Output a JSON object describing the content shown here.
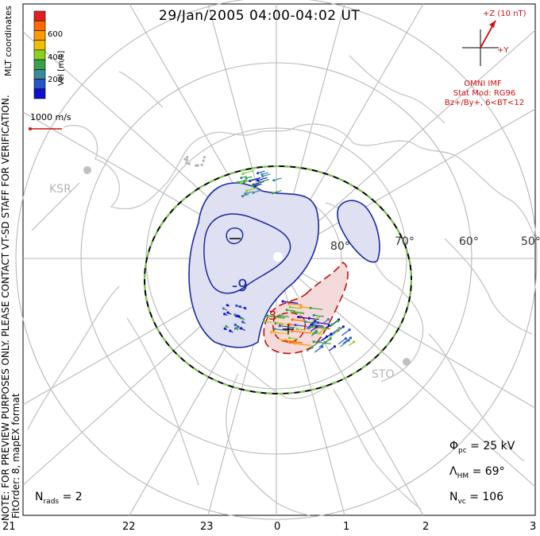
{
  "title": "29/Jan/2005 04:00-04:02 UT",
  "side_note_1": "NOTE: FOR PREVIEW PURPOSES ONLY. PLEASE CONTACT VT-SD STAFF FOR VERIFICATION.",
  "side_note_2": "FitOrder: 8, mapEX format",
  "coord_label": "MLT coordinates",
  "colorbar": {
    "label": "Vel [m/s]",
    "ticks": [
      "600",
      "400",
      "200"
    ],
    "colors": [
      "#e02020",
      "#ff6a00",
      "#ff9a00",
      "#f0c000",
      "#8ad020",
      "#3aa04a",
      "#3a8a9a",
      "#2a55c8",
      "#1010d0"
    ]
  },
  "scale_vector": "1000 m/s",
  "imf": {
    "z_label": "+Z (10 nT)",
    "y_label": "+Y",
    "source": "OMNI IMF",
    "model": "Stat Mod: RG96",
    "condition": "Bz+/By+, 6<BT<12"
  },
  "stats": {
    "phi_pc": "= 25 kV",
    "lambda_hm": "= 69°",
    "n_vc": "= 106",
    "n_rads": "= 2"
  },
  "radars": [
    "KSR",
    "STO"
  ],
  "lat_labels": [
    "80°",
    "70°",
    "60°",
    "50°"
  ],
  "mlt_ticks": [
    "21",
    "22",
    "23",
    "0",
    "1",
    "2",
    "3"
  ],
  "contour_labels": [
    "-9",
    "3"
  ],
  "colors": {
    "negative_cell": "#1a2aa0",
    "positive_cell": "#c01010",
    "hm_boundary": "#000000",
    "hm_dash": "#7ac94a",
    "coastline": "#c8c8c8",
    "grid": "#b8b8b8"
  }
}
